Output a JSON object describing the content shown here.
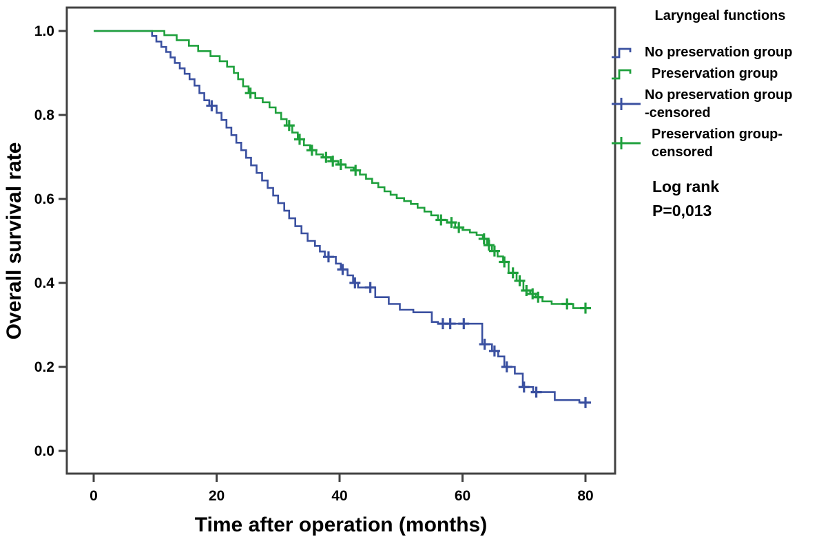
{
  "legend": {
    "title": "Laryngeal functions",
    "items": [
      {
        "label": "No preservation group"
      },
      {
        "label": "Preservation group"
      },
      {
        "line1": "No preservation group",
        "line2": "-censored"
      },
      {
        "line1": "Preservation group-",
        "line2": "censored"
      }
    ]
  },
  "chart_data": {
    "type": "line",
    "subtype": "kaplan-meier-step",
    "title": "",
    "xlabel": "Time after operation (months)",
    "ylabel": "Overall survival rate",
    "xlim": [
      0,
      85
    ],
    "ylim": [
      0.0,
      1.0
    ],
    "x_ticks": [
      0,
      20,
      40,
      60,
      80
    ],
    "y_ticks": [
      "0.0",
      "0.2",
      "0.4",
      "0.6",
      "0.8",
      "1.0"
    ],
    "grid": false,
    "legend_position": "right",
    "legend_title": "Laryngeal functions",
    "frame_color": "#424242",
    "text_color": "#000000",
    "annotation": {
      "line1": "Log rank",
      "line2": "P=0,013"
    },
    "series": [
      {
        "name": "No preservation group",
        "color": "#3a50a0",
        "end_t": 80.7,
        "steps": [
          [
            0,
            1.0
          ],
          [
            9.5,
            0.988
          ],
          [
            10.2,
            0.975
          ],
          [
            11,
            0.962
          ],
          [
            11.8,
            0.95
          ],
          [
            12.5,
            0.937
          ],
          [
            13.2,
            0.924
          ],
          [
            14,
            0.911
          ],
          [
            14.8,
            0.898
          ],
          [
            15.6,
            0.885
          ],
          [
            16.4,
            0.87
          ],
          [
            17.2,
            0.852
          ],
          [
            18,
            0.835
          ],
          [
            18.8,
            0.822
          ],
          [
            20,
            0.805
          ],
          [
            20.8,
            0.788
          ],
          [
            21.6,
            0.77
          ],
          [
            22.4,
            0.752
          ],
          [
            23.2,
            0.734
          ],
          [
            24,
            0.716
          ],
          [
            24.8,
            0.698
          ],
          [
            25.6,
            0.68
          ],
          [
            26.5,
            0.662
          ],
          [
            27.4,
            0.644
          ],
          [
            28.3,
            0.626
          ],
          [
            29.2,
            0.608
          ],
          [
            30,
            0.59
          ],
          [
            31,
            0.572
          ],
          [
            31.8,
            0.554
          ],
          [
            32.8,
            0.535
          ],
          [
            33.8,
            0.518
          ],
          [
            34.8,
            0.5
          ],
          [
            36,
            0.488
          ],
          [
            36.8,
            0.475
          ],
          [
            37.6,
            0.462
          ],
          [
            39.4,
            0.446
          ],
          [
            40.2,
            0.432
          ],
          [
            41.3,
            0.418
          ],
          [
            42.2,
            0.4
          ],
          [
            43,
            0.389
          ],
          [
            45.8,
            0.366
          ],
          [
            48,
            0.35
          ],
          [
            49.8,
            0.336
          ],
          [
            52,
            0.33
          ],
          [
            55,
            0.307
          ],
          [
            56,
            0.303
          ],
          [
            63.2,
            0.254
          ],
          [
            64.8,
            0.238
          ],
          [
            65.8,
            0.225
          ],
          [
            66.8,
            0.2
          ],
          [
            68.5,
            0.184
          ],
          [
            69.8,
            0.152
          ],
          [
            71.5,
            0.14
          ],
          [
            75,
            0.121
          ],
          [
            79,
            0.115
          ]
        ],
        "censored_t": [
          19.2,
          38.2,
          40.5,
          42.5,
          45,
          56.8,
          58,
          60.2,
          63.6,
          65.2,
          67.2,
          70,
          72,
          80
        ]
      },
      {
        "name": "Preservation group",
        "color": "#1ea03c",
        "end_t": 80.7,
        "steps": [
          [
            0,
            1.0
          ],
          [
            11.5,
            0.99
          ],
          [
            13.5,
            0.978
          ],
          [
            15.5,
            0.965
          ],
          [
            17,
            0.952
          ],
          [
            19,
            0.94
          ],
          [
            20.5,
            0.928
          ],
          [
            21.7,
            0.915
          ],
          [
            22.8,
            0.9
          ],
          [
            23.5,
            0.885
          ],
          [
            24.3,
            0.868
          ],
          [
            25.2,
            0.852
          ],
          [
            26.3,
            0.84
          ],
          [
            27.5,
            0.83
          ],
          [
            28.6,
            0.818
          ],
          [
            29.6,
            0.805
          ],
          [
            30.5,
            0.79
          ],
          [
            31.4,
            0.775
          ],
          [
            32.3,
            0.758
          ],
          [
            33.2,
            0.742
          ],
          [
            34.2,
            0.728
          ],
          [
            35.2,
            0.716
          ],
          [
            36.2,
            0.706
          ],
          [
            37.3,
            0.699
          ],
          [
            38.6,
            0.69
          ],
          [
            39.8,
            0.682
          ],
          [
            41,
            0.675
          ],
          [
            42.3,
            0.668
          ],
          [
            43.3,
            0.658
          ],
          [
            44.3,
            0.648
          ],
          [
            45.3,
            0.638
          ],
          [
            46.3,
            0.628
          ],
          [
            47.3,
            0.618
          ],
          [
            48.3,
            0.61
          ],
          [
            49.3,
            0.602
          ],
          [
            50.5,
            0.595
          ],
          [
            51.6,
            0.588
          ],
          [
            52.7,
            0.579
          ],
          [
            53.8,
            0.57
          ],
          [
            54.9,
            0.561
          ],
          [
            56,
            0.55
          ],
          [
            57.5,
            0.544
          ],
          [
            58.8,
            0.532
          ],
          [
            60,
            0.526
          ],
          [
            61.2,
            0.52
          ],
          [
            62.3,
            0.514
          ],
          [
            63.3,
            0.505
          ],
          [
            64,
            0.49
          ],
          [
            64.8,
            0.476
          ],
          [
            65.7,
            0.463
          ],
          [
            66.6,
            0.45
          ],
          [
            67.5,
            0.424
          ],
          [
            68.8,
            0.405
          ],
          [
            69.9,
            0.382
          ],
          [
            71,
            0.374
          ],
          [
            71.9,
            0.366
          ],
          [
            73,
            0.356
          ],
          [
            74.5,
            0.35
          ],
          [
            78,
            0.34
          ]
        ],
        "censored_t": [
          25.5,
          31.8,
          33.5,
          35.5,
          37.8,
          38.9,
          40.2,
          42.6,
          56.5,
          58.2,
          59.4,
          63.5,
          64.3,
          65.2,
          66.8,
          68.2,
          69.3,
          70.4,
          71.4,
          72.3,
          77,
          80
        ]
      }
    ]
  }
}
